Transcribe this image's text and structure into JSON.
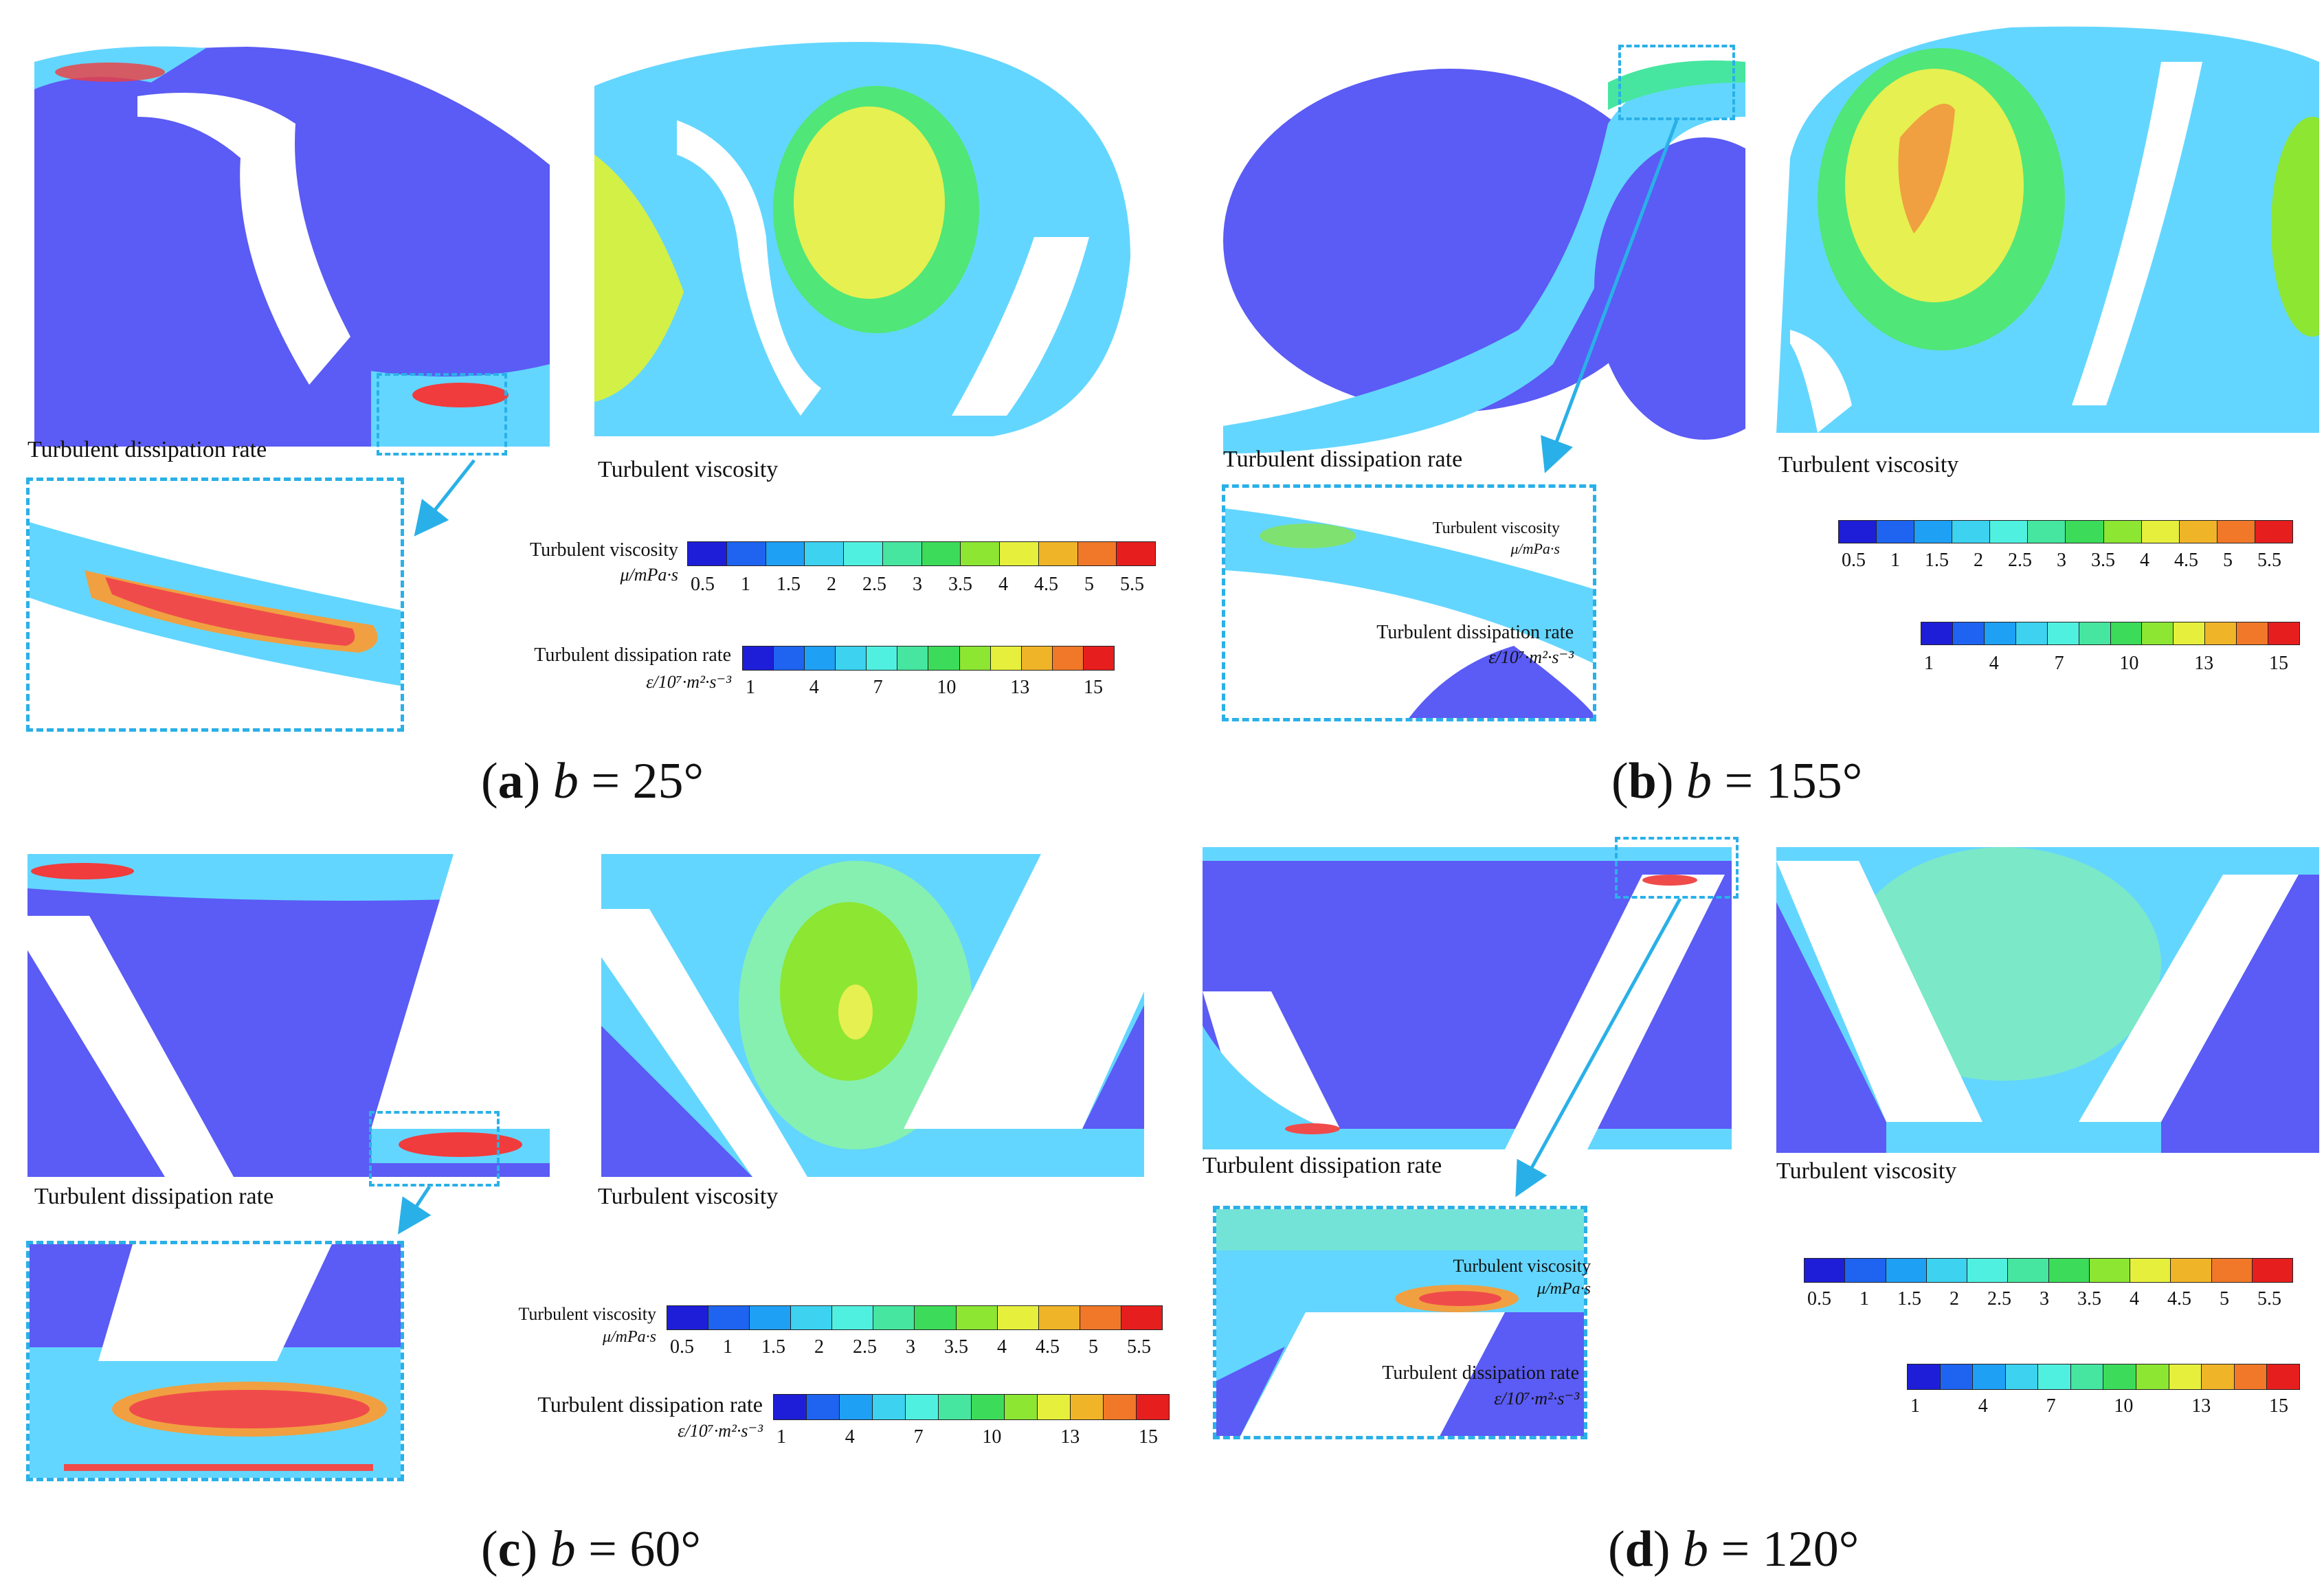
{
  "figure": {
    "labels": {
      "dissipation": "Turbulent dissipation rate",
      "viscosity": "Turbulent viscosity"
    },
    "legend": {
      "viscosity_title": "Turbulent viscosity",
      "viscosity_unit": "μ/mPa·s",
      "viscosity_ticks": [
        "0.5",
        "1",
        "1.5",
        "2",
        "2.5",
        "3",
        "3.5",
        "4",
        "4.5",
        "5",
        "5.5"
      ],
      "dissipation_title": "Turbulent dissipation rate",
      "dissipation_unit": "ε/10⁷·m²·s⁻³",
      "dissipation_ticks": [
        "1",
        "4",
        "7",
        "10",
        "13",
        "15"
      ],
      "colors": [
        "#1e1ed8",
        "#1e64f0",
        "#1ea0f5",
        "#3cd2f0",
        "#50f0e0",
        "#46e6a0",
        "#3cdc5a",
        "#8ce632",
        "#e6f03c",
        "#f0b428",
        "#f07828",
        "#e61e1e"
      ]
    },
    "panels": [
      {
        "id": "a",
        "letter": "a",
        "var": "b",
        "eq": " = 25°"
      },
      {
        "id": "b",
        "letter": "b",
        "var": "b",
        "eq": " = 155°"
      },
      {
        "id": "c",
        "letter": "c",
        "var": "b",
        "eq": " = 60°"
      },
      {
        "id": "d",
        "letter": "d",
        "var": "b",
        "eq": " = 120°"
      }
    ]
  }
}
